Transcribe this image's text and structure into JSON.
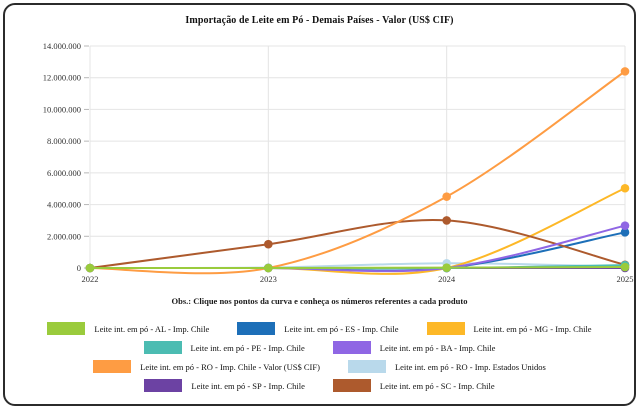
{
  "window": {
    "background": "#ffffff",
    "frame_border_color": "#2b2b2b"
  },
  "chart_data": {
    "type": "line",
    "title": "Importação de Leite em Pó - Demais Países - Valor (US$ CIF)",
    "note": "Obs.: Clique nos pontos da curva e conheça os números referentes a cada produto",
    "x_tick_labels": [
      "2022",
      "2023",
      "2024",
      "2025"
    ],
    "x": [
      2022,
      2023,
      2024,
      2025
    ],
    "ylim": [
      0,
      14000000
    ],
    "y_tick_step": 2000000,
    "y_tick_labels": [
      "0",
      "2.000.000",
      "4.000.000",
      "6.000.000",
      "8.000.000",
      "10.000.000",
      "12.000.000",
      "14.000.000"
    ],
    "grid": true,
    "grid_color": "#e4e4e4",
    "legend_position": "bottom",
    "series": [
      {
        "name": "Leite int. em pó - AL - Imp. Chile",
        "color": "#9acb3c",
        "values": [
          0,
          0,
          20000,
          60000
        ]
      },
      {
        "name": "Leite int. em pó - ES - Imp. Chile",
        "color": "#1d6fb8",
        "values": [
          0,
          0,
          0,
          2250000
        ]
      },
      {
        "name": "Leite int. em pó - MG - Imp. Chile",
        "color": "#fdb827",
        "values": [
          0,
          0,
          0,
          5030000
        ]
      },
      {
        "name": "Leite int. em pó - PE - Imp. Chile",
        "color": "#4cbcb2",
        "values": [
          0,
          0,
          0,
          180000
        ]
      },
      {
        "name": "Leite int. em pó - BA - Imp. Chile",
        "color": "#8f66e4",
        "values": [
          0,
          0,
          0,
          2670000
        ]
      },
      {
        "name": "Leite int. em pó - RO - Imp. Chile - Valor (US$ CIF)",
        "color": "#fe9c43",
        "values": [
          0,
          0,
          4500000,
          12400000
        ]
      },
      {
        "name": "Leite int. em pó - RO - Imp. Estados Unidos",
        "color": "#b9d9eb",
        "values": [
          0,
          30000,
          300000,
          80000
        ]
      },
      {
        "name": "Leite int. em pó - SP - Imp. Chile",
        "color": "#6c42a3",
        "values": [
          0,
          0,
          0,
          0
        ]
      },
      {
        "name": "Leite int. em pó - SC - Imp. Chile",
        "color": "#ad5a2d",
        "values": [
          0,
          1500000,
          3000000,
          200000
        ]
      }
    ],
    "legend_rows": [
      [
        0,
        1,
        2
      ],
      [
        3,
        4
      ],
      [
        5,
        6
      ],
      [
        7,
        8
      ]
    ]
  }
}
